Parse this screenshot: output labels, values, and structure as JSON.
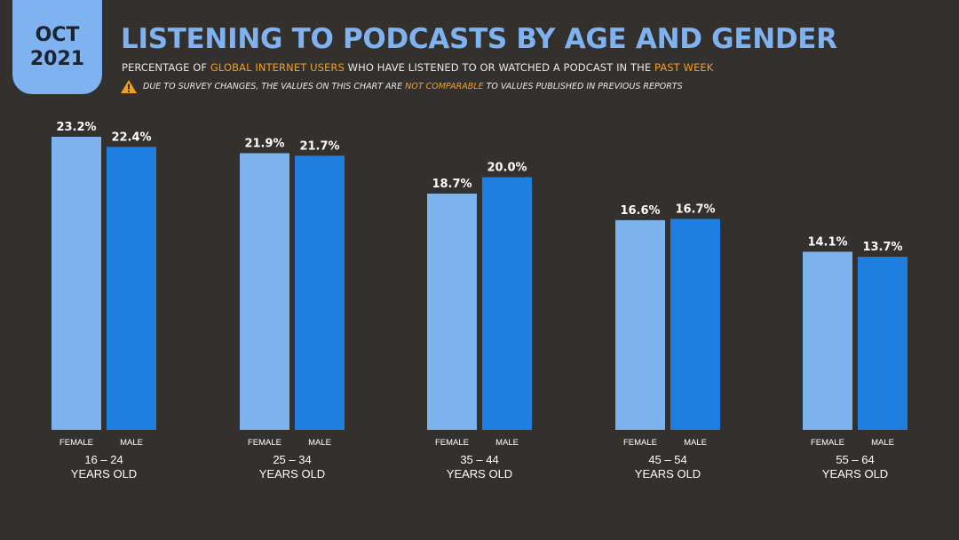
{
  "badge": {
    "month": "OCT",
    "year": "2021"
  },
  "header": {
    "title": "LISTENING TO PODCASTS BY AGE AND GENDER",
    "subtitle_1": "PERCENTAGE OF ",
    "subtitle_hl_1": "GLOBAL INTERNET USERS",
    "subtitle_2": " WHO HAVE LISTENED TO OR WATCHED A PODCAST IN THE ",
    "subtitle_hl_2": "PAST WEEK",
    "warning_1": "DUE TO SURVEY CHANGES, THE VALUES ON THIS CHART ARE ",
    "warning_hl": "NOT COMPARABLE",
    "warning_2": " TO VALUES PUBLISHED IN PREVIOUS REPORTS"
  },
  "colors": {
    "female": "#7db3ec",
    "male": "#1f7fe0",
    "accent": "#f0a020",
    "background": "#34302d"
  },
  "chart_data": {
    "type": "bar",
    "title": "LISTENING TO PODCASTS BY AGE AND GENDER",
    "categories": [
      {
        "line1": "16 – 24",
        "line2": "YEARS OLD"
      },
      {
        "line1": "25 – 34",
        "line2": "YEARS OLD"
      },
      {
        "line1": "35 – 44",
        "line2": "YEARS OLD"
      },
      {
        "line1": "45 – 54",
        "line2": "YEARS OLD"
      },
      {
        "line1": "55 – 64",
        "line2": "YEARS OLD"
      }
    ],
    "series": [
      {
        "name": "FEMALE",
        "values": [
          23.2,
          21.9,
          18.7,
          16.6,
          14.1
        ],
        "labels": [
          "23.2%",
          "21.9%",
          "18.7%",
          "16.6%",
          "14.1%"
        ]
      },
      {
        "name": "MALE",
        "values": [
          22.4,
          21.7,
          20.0,
          16.7,
          13.7
        ],
        "labels": [
          "22.4%",
          "21.7%",
          "20.0%",
          "16.7%",
          "13.7%"
        ]
      }
    ],
    "ylim": [
      0,
      23.2
    ],
    "grid": false,
    "legend": "none"
  }
}
